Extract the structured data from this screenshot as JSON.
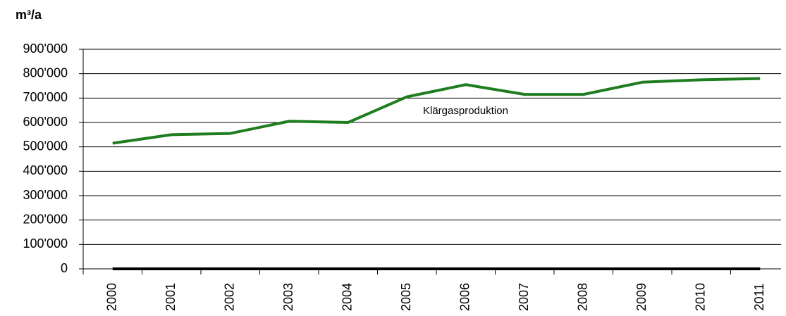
{
  "chart_data": {
    "type": "line",
    "y_label": "m³/a",
    "annotation": "Klärgasproduktion",
    "categories": [
      "2000",
      "2001",
      "2002",
      "2003",
      "2004",
      "2005",
      "2006",
      "2007",
      "2008",
      "2009",
      "2010",
      "2011"
    ],
    "series": [
      {
        "name": "Klärgasproduktion",
        "color": "#1e7d1e",
        "values": [
          515000,
          550000,
          555000,
          605000,
          600000,
          705000,
          755000,
          715000,
          715000,
          765000,
          775000,
          780000
        ]
      },
      {
        "color": "#000000",
        "values": [
          0,
          0,
          0,
          0,
          0,
          0,
          0,
          0,
          0,
          0,
          0,
          0
        ]
      }
    ],
    "ylim": [
      0,
      900000
    ],
    "yticks": [
      {
        "value": 0,
        "label": "0"
      },
      {
        "value": 100000,
        "label": "100'000"
      },
      {
        "value": 200000,
        "label": "200'000"
      },
      {
        "value": 300000,
        "label": "300'000"
      },
      {
        "value": 400000,
        "label": "400'000"
      },
      {
        "value": 500000,
        "label": "500'000"
      },
      {
        "value": 600000,
        "label": "600'000"
      },
      {
        "value": 700000,
        "label": "700'000"
      },
      {
        "value": 800000,
        "label": "800'000"
      },
      {
        "value": 900000,
        "label": "900'000"
      }
    ],
    "grid": true
  }
}
